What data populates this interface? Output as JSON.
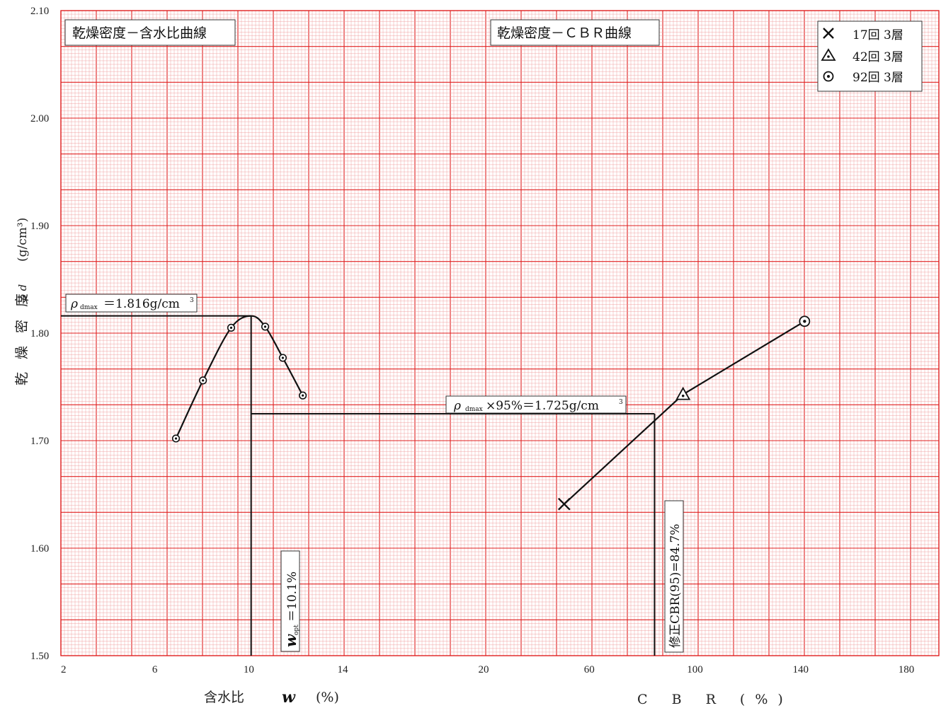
{
  "chart_data": [
    {
      "type": "line",
      "title": "乾燥密度－含水比曲線",
      "xlabel_parts": [
        "含水比",
        "w",
        "(%)"
      ],
      "ylabel": "乾燥密度",
      "ylabel_symbol": "ρ d",
      "ylabel_unit": "(g/cm³)",
      "x_ticks": [
        "2",
        "6",
        "10",
        "14",
        "20"
      ],
      "x_tick_values": [
        2,
        6,
        10,
        14,
        20
      ],
      "xlim": [
        2,
        20
      ],
      "y_ticks": [
        "1.50",
        "1.60",
        "1.70",
        "1.80",
        "1.90",
        "2.00",
        "2.10"
      ],
      "y_tick_values": [
        1.5,
        1.6,
        1.7,
        1.8,
        1.9,
        2.0,
        2.1
      ],
      "ylim": [
        1.5,
        2.1
      ],
      "series": [
        {
          "x": [
            6.9,
            8.05,
            9.25,
            10.7,
            11.45,
            12.3
          ],
          "y": [
            1.702,
            1.756,
            1.805,
            1.806,
            1.777,
            1.742
          ]
        }
      ],
      "curve": {
        "x": [
          6.9,
          8.05,
          9.25,
          10.1,
          10.7,
          11.45,
          12.3
        ],
        "y": [
          1.702,
          1.756,
          1.805,
          1.816,
          1.806,
          1.777,
          1.742
        ]
      },
      "annotations": {
        "rho_dmax_symbol": "ρ",
        "rho_dmax_sub": "dmax",
        "rho_dmax_value": "＝1.816g/cm",
        "rho_dmax_sup": "3",
        "rho_dmax": 1.816,
        "w_opt_symbol": "w",
        "w_opt_sub": "opt",
        "w_opt_value": "＝10.1%",
        "w_opt": 10.1
      }
    },
    {
      "type": "line",
      "title": "乾燥密度－ＣＢＲ曲線",
      "xlabel": "C B R (%)",
      "x_ticks": [
        "20",
        "60",
        "100",
        "140",
        "180"
      ],
      "x_tick_values": [
        20,
        60,
        100,
        140,
        180
      ],
      "xlim": [
        20,
        186
      ],
      "ylim": [
        1.5,
        2.1
      ],
      "series": [
        {
          "name": "17回 3層",
          "marker": "x",
          "x": [
            50.5
          ],
          "y": [
            1.641
          ]
        },
        {
          "name": "42回 3層",
          "marker": "triangle",
          "x": [
            95.5
          ],
          "y": [
            1.743
          ]
        },
        {
          "name": "92回 3層",
          "marker": "dot-circle",
          "x": [
            141.5
          ],
          "y": [
            1.811
          ]
        }
      ],
      "line": {
        "x": [
          50.5,
          95.5,
          141.5
        ],
        "y": [
          1.641,
          1.743,
          1.811
        ]
      },
      "annotations": {
        "rho95_symbol": "ρ",
        "rho95_sub": "dmax",
        "rho95_value": "×95%＝1.725g/cm",
        "rho95_sup": "3",
        "rho95": 1.725,
        "cbr95_label": "修正CBR(95)=84.7%",
        "cbr95": 84.7
      }
    }
  ],
  "colors": {
    "grid_minor": "#ee9a9a",
    "grid_major": "#e02020",
    "line": "#111111"
  }
}
